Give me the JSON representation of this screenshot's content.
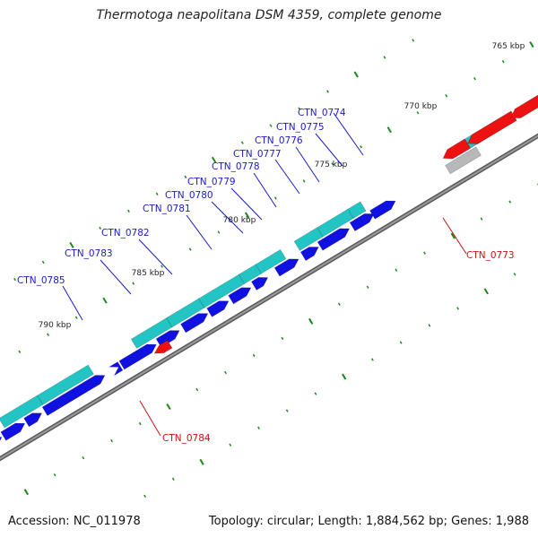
{
  "title": "Thermotoga neapolitana DSM 4359, complete genome",
  "accession": "Accession: NC_011978",
  "topology": "Topology: circular; Length: 1,884,562 bp; Genes: 1,988",
  "colors": {
    "backbone": "#7a7a7a",
    "forward_cds": "#1010e0",
    "reverse_cds": "#ee1111",
    "rna": "#23c4c4",
    "pseudo": "#b8b8b8",
    "tick": "#1a8a1a",
    "label_forward": "#1a1acc",
    "label_reverse": "#cc1111"
  },
  "kbp_labels": [
    "765 kbp",
    "770 kbp",
    "775 kbp",
    "780 kbp",
    "785 kbp",
    "790 kbp"
  ],
  "gene_labels": [
    {
      "name": "CTN_0773",
      "strand": "reverse"
    },
    {
      "name": "CTN_0774",
      "strand": "forward"
    },
    {
      "name": "CTN_0775",
      "strand": "forward"
    },
    {
      "name": "CTN_0776",
      "strand": "forward"
    },
    {
      "name": "CTN_0777",
      "strand": "forward"
    },
    {
      "name": "CTN_0778",
      "strand": "forward"
    },
    {
      "name": "CTN_0779",
      "strand": "forward"
    },
    {
      "name": "CTN_0780",
      "strand": "forward"
    },
    {
      "name": "CTN_0781",
      "strand": "forward"
    },
    {
      "name": "CTN_0782",
      "strand": "forward"
    },
    {
      "name": "CTN_0783",
      "strand": "forward"
    },
    {
      "name": "CTN_0784",
      "strand": "reverse"
    },
    {
      "name": "CTN_0785",
      "strand": "forward"
    }
  ]
}
